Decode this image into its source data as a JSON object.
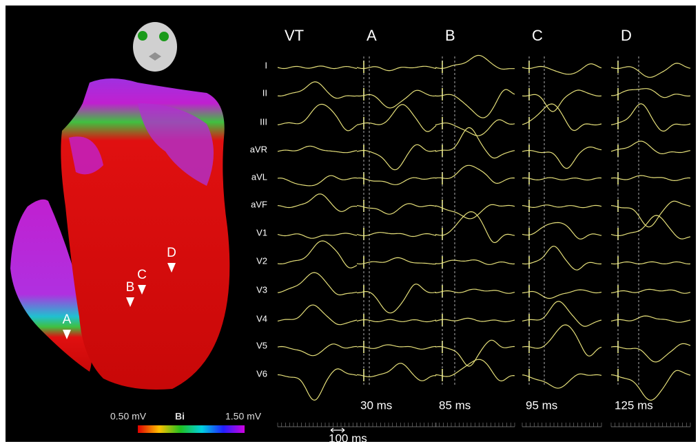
{
  "map": {
    "site_labels": [
      "A",
      "B",
      "C",
      "D"
    ],
    "colorbar": {
      "min_label": "0.50 mV",
      "title": "Bi",
      "max_label": "1.50 mV"
    }
  },
  "ecg": {
    "columns": [
      "VT",
      "A",
      "B",
      "C",
      "D"
    ],
    "leads": [
      "I",
      "II",
      "III",
      "aVR",
      "aVL",
      "aVF",
      "V1",
      "V2",
      "V3",
      "V4",
      "V5",
      "V6"
    ],
    "delays": [
      "30 ms",
      "85 ms",
      "95 ms",
      "125 ms"
    ],
    "scale_label": "100 ms"
  }
}
